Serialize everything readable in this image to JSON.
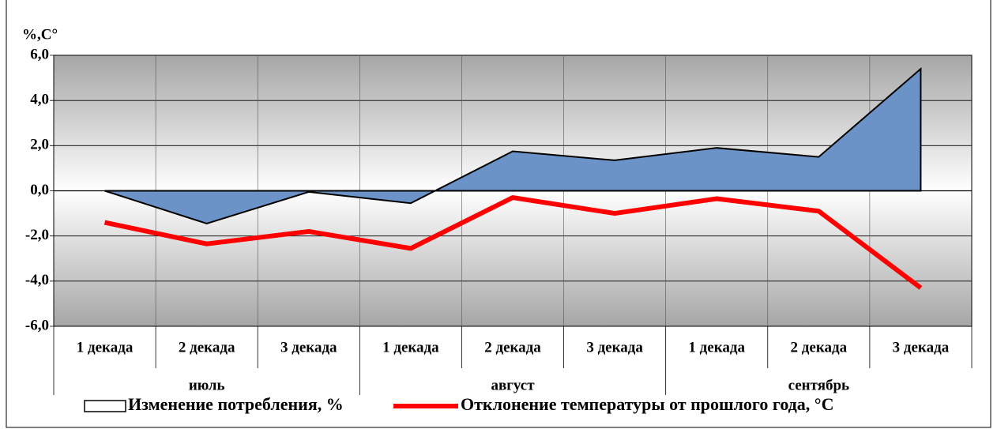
{
  "chart_data": {
    "type": "area-line",
    "y_label": "%,C°",
    "categories": [
      "1 декада",
      "2 декада",
      "3 декада",
      "1 декада",
      "2 декада",
      "3 декада",
      "1 декада",
      "2 декада",
      "3 декада"
    ],
    "groups": [
      "июль",
      "август",
      "сентябрь"
    ],
    "series": [
      {
        "name": "Изменение потребления, %",
        "kind": "area",
        "color": "#6b93c8",
        "values": [
          0,
          -1.45,
          -0.05,
          -0.55,
          1.75,
          1.35,
          1.9,
          1.5,
          5.4
        ]
      },
      {
        "name": "Отклонение температуры от прошлого года, °C",
        "kind": "line",
        "color": "#ff0000",
        "values": [
          -1.4,
          -2.35,
          -1.8,
          -2.55,
          -0.3,
          -1.0,
          -0.35,
          -0.9,
          -4.3
        ]
      }
    ],
    "ylim": [
      -6,
      6
    ],
    "yticks": [
      {
        "value": 6,
        "label": "6,0"
      },
      {
        "value": 4,
        "label": "4,0"
      },
      {
        "value": 2,
        "label": "2,0"
      },
      {
        "value": 0,
        "label": "0,0"
      },
      {
        "value": -2,
        "label": "-2,0"
      },
      {
        "value": -4,
        "label": "-4,0"
      },
      {
        "value": -6,
        "label": "-6,0"
      }
    ],
    "grid": true,
    "legend": "bottom"
  }
}
